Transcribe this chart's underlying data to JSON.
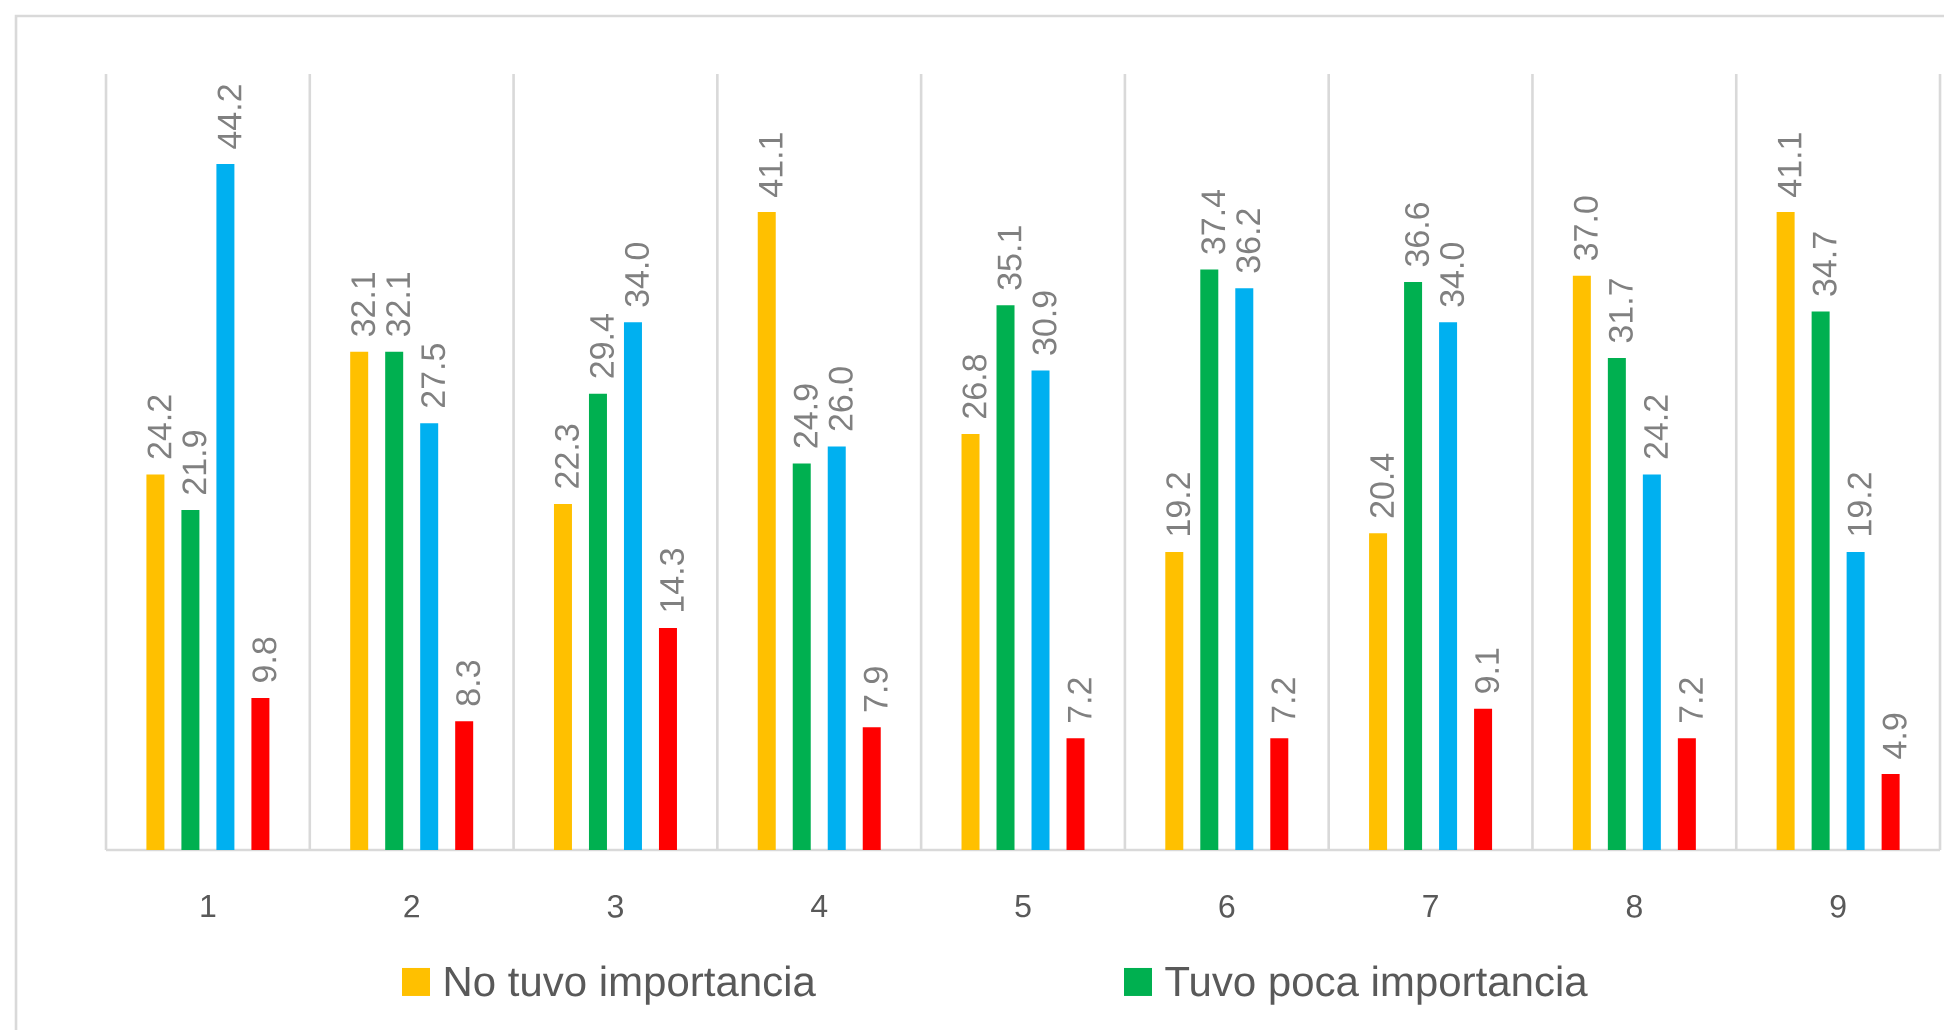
{
  "chart_data": {
    "type": "bar",
    "categories": [
      "1",
      "2",
      "3",
      "4",
      "5",
      "6",
      "7",
      "8",
      "9"
    ],
    "series": [
      {
        "name": "No tuvo importancia",
        "color": "#ffc000",
        "values": [
          24.2,
          32.1,
          22.3,
          41.1,
          26.8,
          19.2,
          20.4,
          37.0,
          41.1
        ],
        "value_labels": [
          "24.2",
          "32.1",
          "22.3",
          "41.1",
          "26.8",
          "19.2",
          "20.4",
          "37.0",
          "41.1"
        ]
      },
      {
        "name": "Tuvo poca importancia",
        "color": "#00b050",
        "values": [
          21.9,
          32.1,
          29.4,
          24.9,
          35.1,
          37.4,
          36.6,
          31.7,
          34.7
        ],
        "value_labels": [
          "21.9",
          "32.1",
          "29.4",
          "24.9",
          "35.1",
          "37.4",
          "36.6",
          "31.7",
          "34.7"
        ]
      },
      {
        "color": "#00b0f0",
        "values": [
          44.2,
          27.5,
          34.0,
          26.0,
          30.9,
          36.2,
          34.0,
          24.2,
          19.2
        ],
        "value_labels": [
          "44.2",
          "27.5",
          "34.0",
          "26.0",
          "30.9",
          "36.2",
          "34.0",
          "24.2",
          "19.2"
        ]
      },
      {
        "color": "#ff0000",
        "values": [
          9.8,
          8.3,
          14.3,
          7.9,
          7.2,
          7.2,
          9.1,
          7.2,
          4.9
        ],
        "value_labels": [
          "9.8",
          "8.3",
          "14.3",
          "7.9",
          "7.2",
          "7.2",
          "9.1",
          "7.2",
          "4.9"
        ]
      }
    ],
    "ylim": [
      0,
      50
    ],
    "grid": "x",
    "legend": "bottom",
    "tick_labels": "x"
  }
}
